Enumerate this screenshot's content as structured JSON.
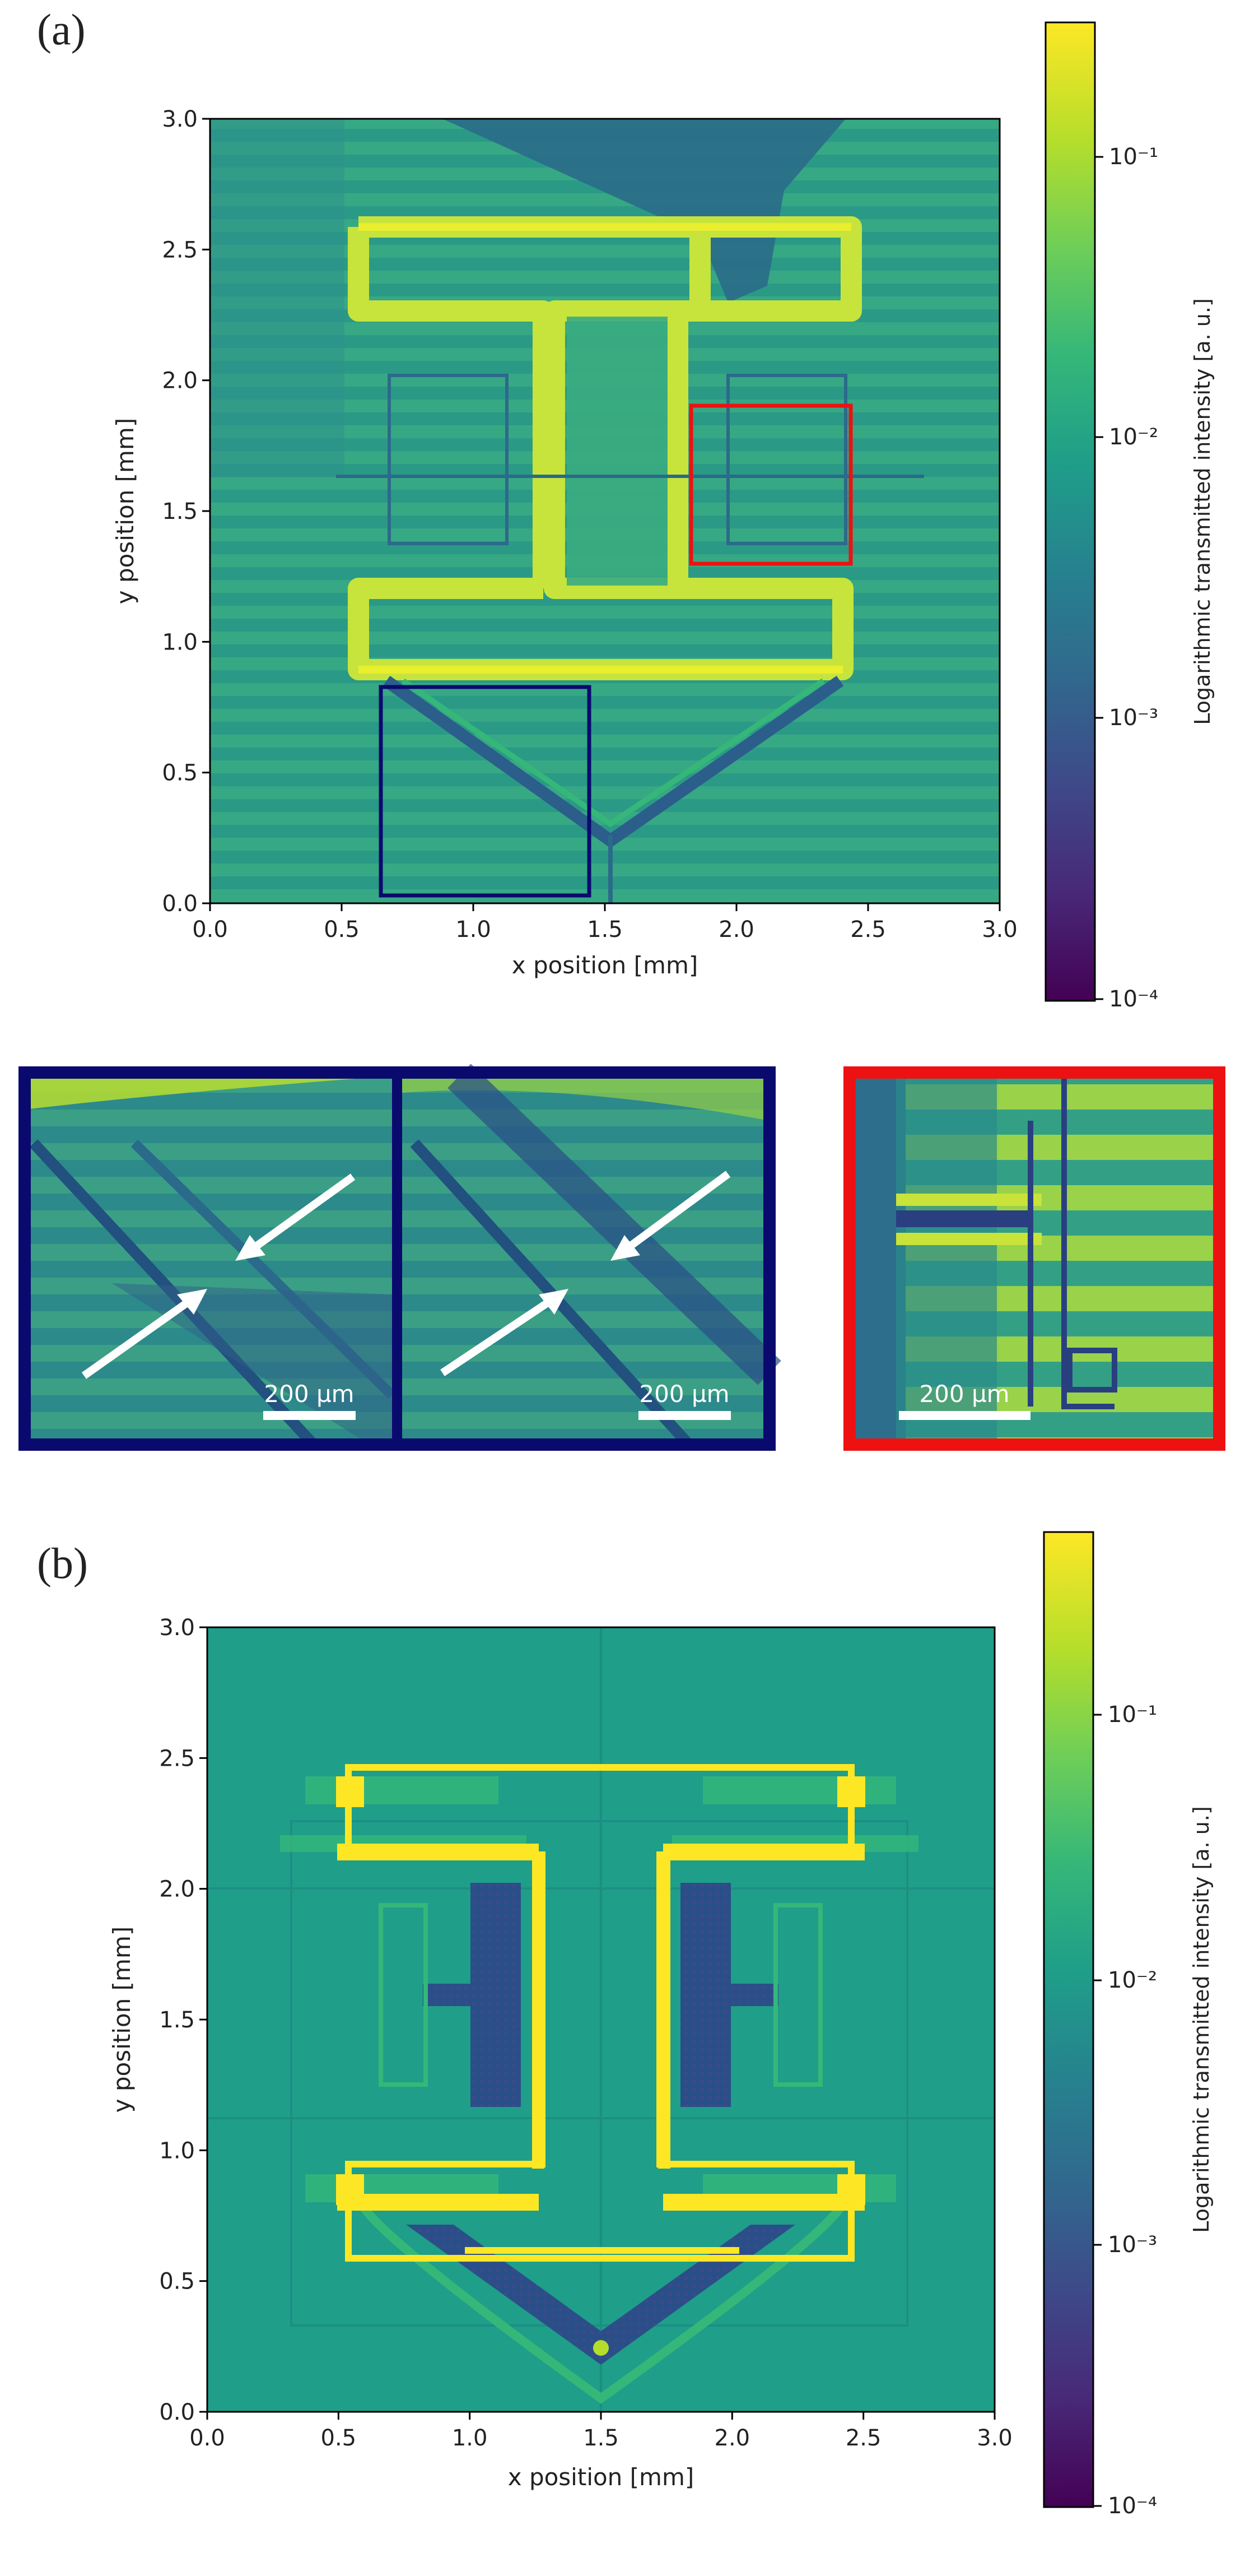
{
  "panels": {
    "a_label": "(a)",
    "b_label": "(b)"
  },
  "colors": {
    "viridis": [
      "#440154",
      "#482878",
      "#3e4989",
      "#31688e",
      "#26828e",
      "#1f9e89",
      "#35b779",
      "#6ece58",
      "#b5de2b",
      "#fde725"
    ],
    "red_box": "#ee1111",
    "navy_box": "#0a0a6e"
  },
  "chart_data": [
    {
      "type": "heatmap",
      "panel": "(a)",
      "description_source": "measured",
      "xlabel": "x position [mm]",
      "ylabel": "y position [mm]",
      "xlim": [
        0.0,
        3.0
      ],
      "ylim": [
        0.0,
        3.0
      ],
      "xticks": [
        "0.0",
        "0.5",
        "1.0",
        "1.5",
        "2.0",
        "2.5",
        "3.0"
      ],
      "yticks": [
        "0.0",
        "0.5",
        "1.0",
        "1.5",
        "2.0",
        "2.5",
        "3.0"
      ],
      "colorbar": {
        "label": "Logarithmic transmitted intensity [a. u.]",
        "scale": "log",
        "range": [
          0.0001,
          0.3
        ],
        "ticks": [
          "10⁻¹",
          "10⁻²",
          "10⁻³",
          "10⁻⁴"
        ],
        "tick_values": [
          0.1,
          0.01,
          0.001,
          0.0001
        ]
      },
      "regions_of_interest": [
        {
          "color": "navy",
          "x": [
            0.65,
            1.45
          ],
          "y": [
            0.04,
            0.84
          ]
        },
        {
          "color": "red",
          "x": [
            1.83,
            2.44
          ],
          "y": [
            1.3,
            1.91
          ]
        }
      ],
      "insets": [
        {
          "frame": "navy",
          "scalebar": "200 µm"
        },
        {
          "frame": "navy",
          "scalebar": "200 µm"
        },
        {
          "frame": "red",
          "scalebar": "200 µm"
        }
      ]
    },
    {
      "type": "heatmap",
      "panel": "(b)",
      "xlabel": "x position [mm]",
      "ylabel": "y position [mm]",
      "xlim": [
        0.0,
        3.0
      ],
      "ylim": [
        0.0,
        3.0
      ],
      "xticks": [
        "0.0",
        "0.5",
        "1.0",
        "1.5",
        "2.0",
        "2.5",
        "3.0"
      ],
      "yticks": [
        "0.0",
        "0.5",
        "1.0",
        "1.5",
        "2.0",
        "2.5",
        "3.0"
      ],
      "colorbar": {
        "label": "Logarithmic transmitted intensity [a. u.]",
        "scale": "log",
        "range": [
          0.0001,
          0.5
        ],
        "ticks": [
          "10⁻¹",
          "10⁻²",
          "10⁻³",
          "10⁻⁴"
        ],
        "tick_values": [
          0.1,
          0.01,
          0.001,
          0.0001
        ]
      }
    }
  ]
}
